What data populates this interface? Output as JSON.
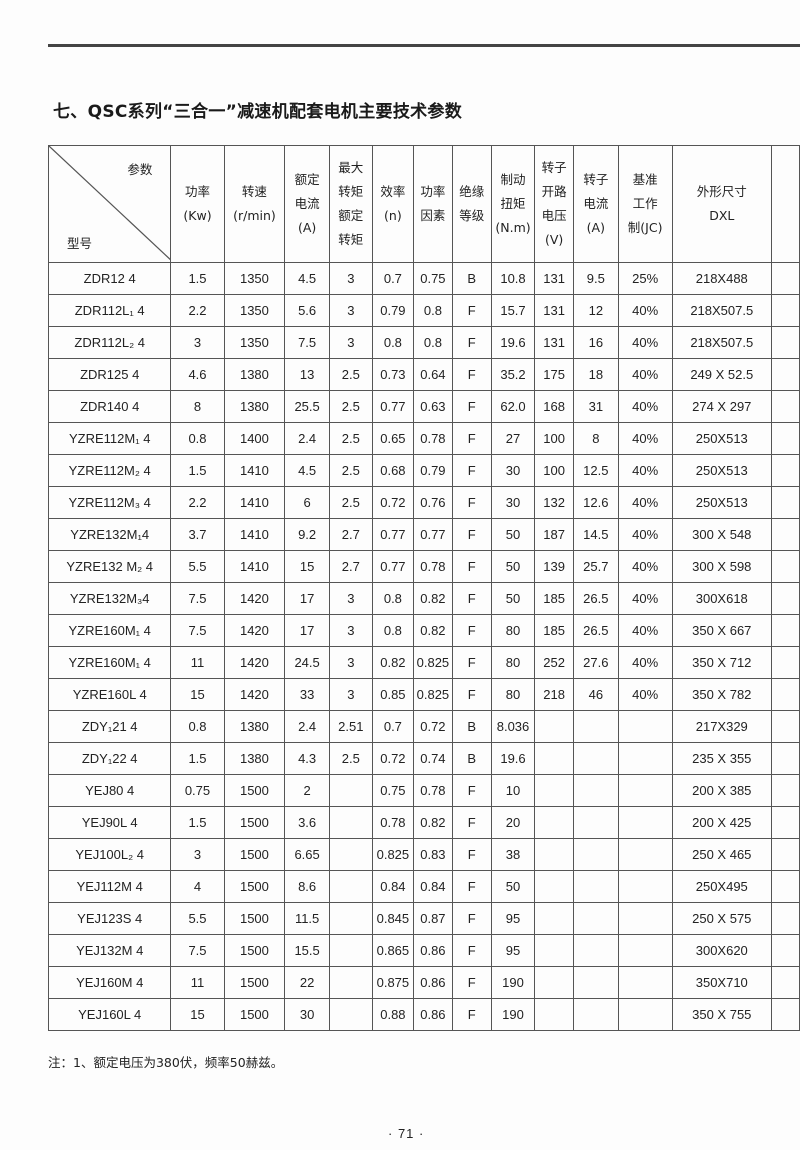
{
  "title": "七、QSC系列“三合一”减速机配套电机主要技术参数",
  "table": {
    "corner_param": "参数",
    "corner_model": "型号",
    "headers": [
      [
        "功率",
        "(Kw)"
      ],
      [
        "转速",
        "(r/min)"
      ],
      [
        "额定",
        "电流",
        "(A)"
      ],
      [
        "最大",
        "转矩",
        "额定",
        "转矩"
      ],
      [
        "效率",
        "(n)"
      ],
      [
        "功率",
        "因素"
      ],
      [
        "绝缘",
        "等级"
      ],
      [
        "制动",
        "扭矩",
        "(N.m)"
      ],
      [
        "转子",
        "开路",
        "电压",
        "(V)"
      ],
      [
        "转子",
        "电流",
        "(A)"
      ],
      [
        "基准",
        "工作",
        "制(JC)"
      ],
      [
        "外形尺寸",
        "DXL"
      ]
    ],
    "rows": [
      [
        "ZDR12 4",
        "1.5",
        "1350",
        "4.5",
        "3",
        "0.7",
        "0.75",
        "B",
        "10.8",
        "131",
        "9.5",
        "25%",
        "218X488"
      ],
      [
        "ZDR112L₁ 4",
        "2.2",
        "1350",
        "5.6",
        "3",
        "0.79",
        "0.8",
        "F",
        "15.7",
        "131",
        "12",
        "40%",
        "218X507.5"
      ],
      [
        "ZDR112L₂ 4",
        "3",
        "1350",
        "7.5",
        "3",
        "0.8",
        "0.8",
        "F",
        "19.6",
        "131",
        "16",
        "40%",
        "218X507.5"
      ],
      [
        "ZDR125  4",
        "4.6",
        "1380",
        "13",
        "2.5",
        "0.73",
        "0.64",
        "F",
        "35.2",
        "175",
        "18",
        "40%",
        "249 X 52.5"
      ],
      [
        "ZDR140  4",
        "8",
        "1380",
        "25.5",
        "2.5",
        "0.77",
        "0.63",
        "F",
        "62.0",
        "168",
        "31",
        "40%",
        "274 X 297"
      ],
      [
        "YZRE112M₁ 4",
        "0.8",
        "1400",
        "2.4",
        "2.5",
        "0.65",
        "0.78",
        "F",
        "27",
        "100",
        "8",
        "40%",
        "250X513"
      ],
      [
        "YZRE112M₂ 4",
        "1.5",
        "1410",
        "4.5",
        "2.5",
        "0.68",
        "0.79",
        "F",
        "30",
        "100",
        "12.5",
        "40%",
        "250X513"
      ],
      [
        "YZRE112M₃ 4",
        "2.2",
        "1410",
        "6",
        "2.5",
        "0.72",
        "0.76",
        "F",
        "30",
        "132",
        "12.6",
        "40%",
        "250X513"
      ],
      [
        "YZRE132M₁4",
        "3.7",
        "1410",
        "9.2",
        "2.7",
        "0.77",
        "0.77",
        "F",
        "50",
        "187",
        "14.5",
        "40%",
        "300 X 548"
      ],
      [
        "YZRE132 M₂ 4",
        "5.5",
        "1410",
        "15",
        "2.7",
        "0.77",
        "0.78",
        "F",
        "50",
        "139",
        "25.7",
        "40%",
        "300 X 598"
      ],
      [
        "YZRE132M₃4",
        "7.5",
        "1420",
        "17",
        "3",
        "0.8",
        "0.82",
        "F",
        "50",
        "185",
        "26.5",
        "40%",
        "300X618"
      ],
      [
        "YZRE160M₁ 4",
        "7.5",
        "1420",
        "17",
        "3",
        "0.8",
        "0.82",
        "F",
        "80",
        "185",
        "26.5",
        "40%",
        "350 X 667"
      ],
      [
        "YZRE160M₁ 4",
        "11",
        "1420",
        "24.5",
        "3",
        "0.82",
        "0.825",
        "F",
        "80",
        "252",
        "27.6",
        "40%",
        "350 X 712"
      ],
      [
        "YZRE160L 4",
        "15",
        "1420",
        "33",
        "3",
        "0.85",
        "0.825",
        "F",
        "80",
        "218",
        "46",
        "40%",
        "350 X 782"
      ],
      [
        "ZDY₁21 4",
        "0.8",
        "1380",
        "2.4",
        "2.51",
        "0.7",
        "0.72",
        "B",
        "8.036",
        "",
        "",
        "",
        "217X329"
      ],
      [
        "ZDY₁22 4",
        "1.5",
        "1380",
        "4.3",
        "2.5",
        "0.72",
        "0.74",
        "B",
        "19.6",
        "",
        "",
        "",
        "235 X 355"
      ],
      [
        "YEJ80 4",
        "0.75",
        "1500",
        "2",
        "",
        "0.75",
        "0.78",
        "F",
        "10",
        "",
        "",
        "",
        "200 X 385"
      ],
      [
        "YEJ90L 4",
        "1.5",
        "1500",
        "3.6",
        "",
        "0.78",
        "0.82",
        "F",
        "20",
        "",
        "",
        "",
        "200 X 425"
      ],
      [
        "YEJ100L₂ 4",
        "3",
        "1500",
        "6.65",
        "",
        "0.825",
        "0.83",
        "F",
        "38",
        "",
        "",
        "",
        "250 X 465"
      ],
      [
        "YEJ112M 4",
        "4",
        "1500",
        "8.6",
        "",
        "0.84",
        "0.84",
        "F",
        "50",
        "",
        "",
        "",
        "250X495"
      ],
      [
        "YEJ123S 4",
        "5.5",
        "1500",
        "11.5",
        "",
        "0.845",
        "0.87",
        "F",
        "95",
        "",
        "",
        "",
        "250 X 575"
      ],
      [
        "YEJ132M 4",
        "7.5",
        "1500",
        "15.5",
        "",
        "0.865",
        "0.86",
        "F",
        "95",
        "",
        "",
        "",
        "300X620"
      ],
      [
        "YEJ160M 4",
        "11",
        "1500",
        "22",
        "",
        "0.875",
        "0.86",
        "F",
        "190",
        "",
        "",
        "",
        "350X710"
      ],
      [
        "YEJ160L 4",
        "15",
        "1500",
        "30",
        "",
        "0.88",
        "0.86",
        "F",
        "190",
        "",
        "",
        "",
        "350 X 755"
      ]
    ]
  },
  "note": "注：1、额定电压为380伏，频率50赫兹。",
  "page_number": "· 71 ·"
}
